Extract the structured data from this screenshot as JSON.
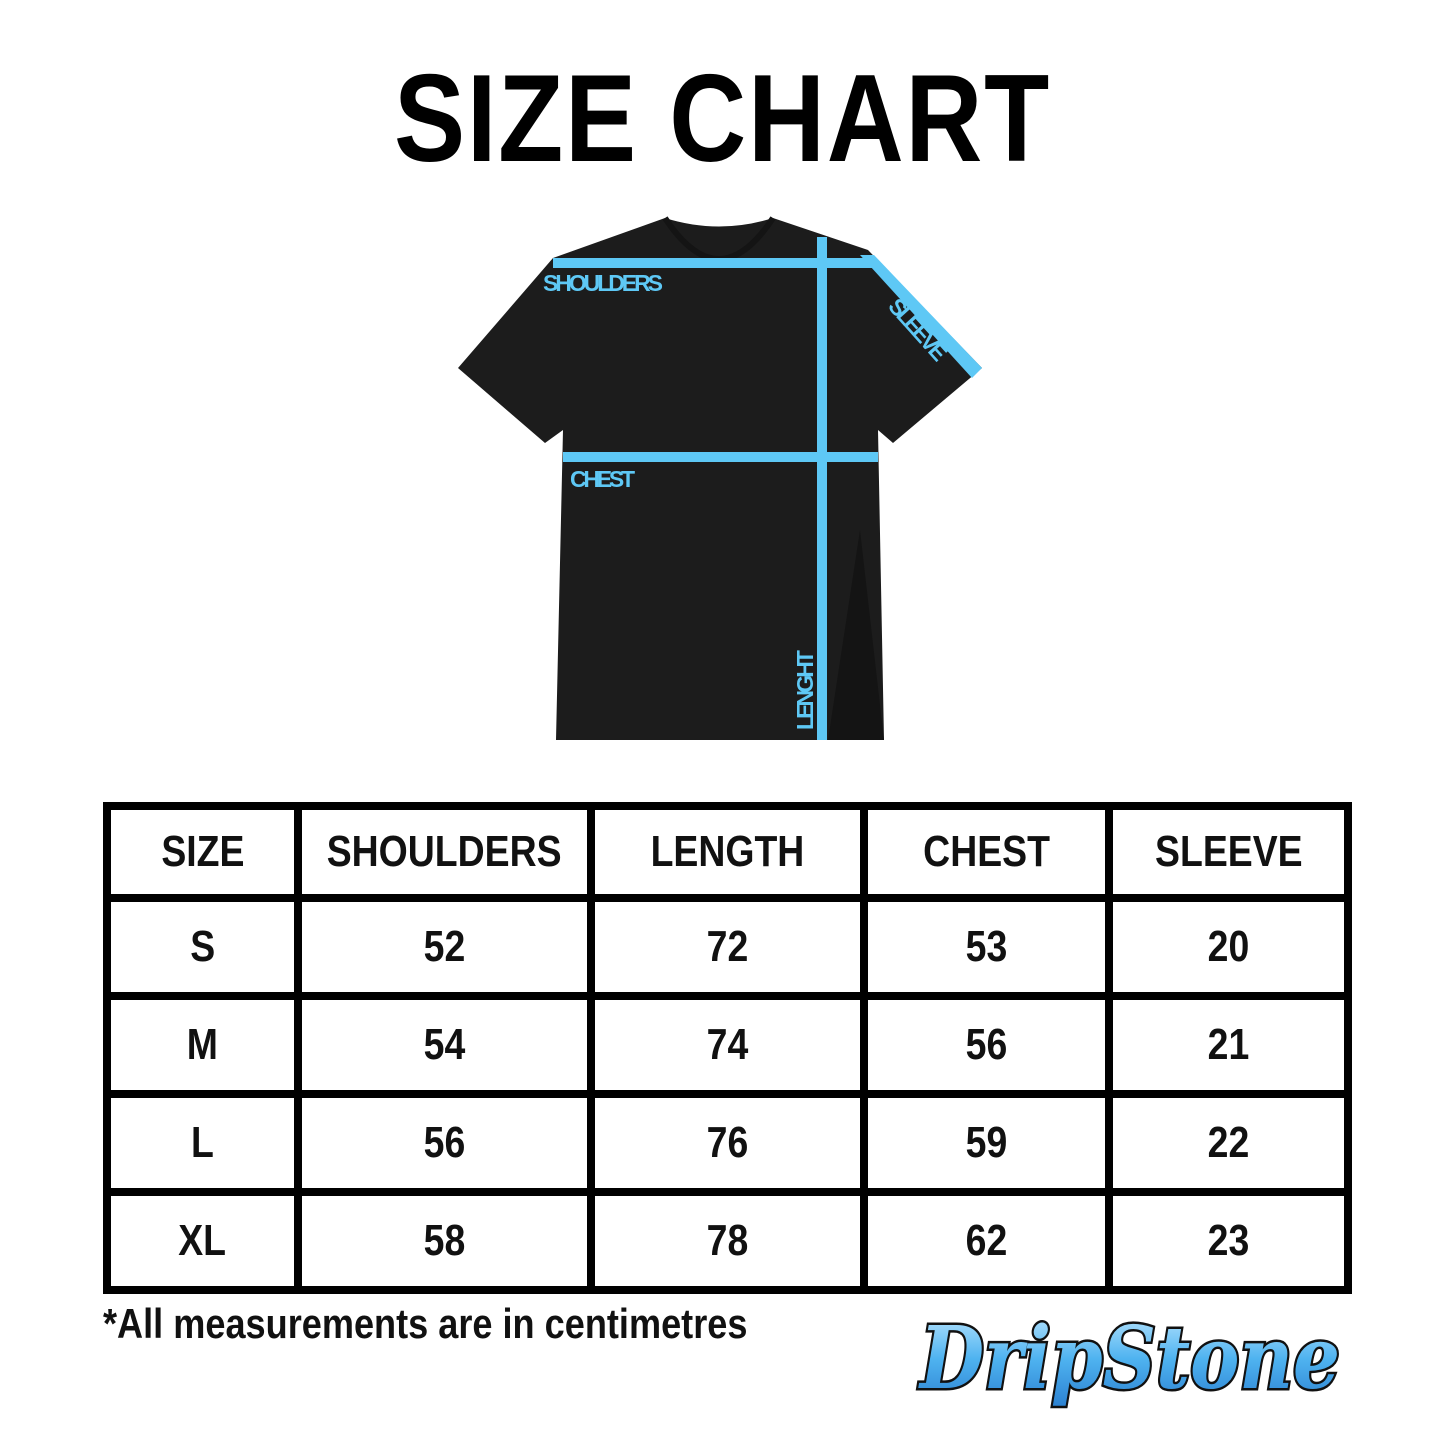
{
  "title": "SIZE CHART",
  "diagram": {
    "labels": {
      "shoulders": "SHOULDERS",
      "chest": "CHEST",
      "sleeve": "SLEEVE",
      "length": "LENGHT"
    },
    "shirt_color": "#1c1c1c",
    "accent_color": "#5ec8f5"
  },
  "table": {
    "headers": [
      "SIZE",
      "SHOULDERS",
      "LENGTH",
      "CHEST",
      "SLEEVE"
    ],
    "rows": [
      [
        "S",
        "52",
        "72",
        "53",
        "20"
      ],
      [
        "M",
        "54",
        "74",
        "56",
        "21"
      ],
      [
        "L",
        "56",
        "76",
        "59",
        "22"
      ],
      [
        "XL",
        "58",
        "78",
        "62",
        "23"
      ]
    ]
  },
  "note": "*All measurements are in centimetres",
  "logo": {
    "text": "DripStone"
  }
}
